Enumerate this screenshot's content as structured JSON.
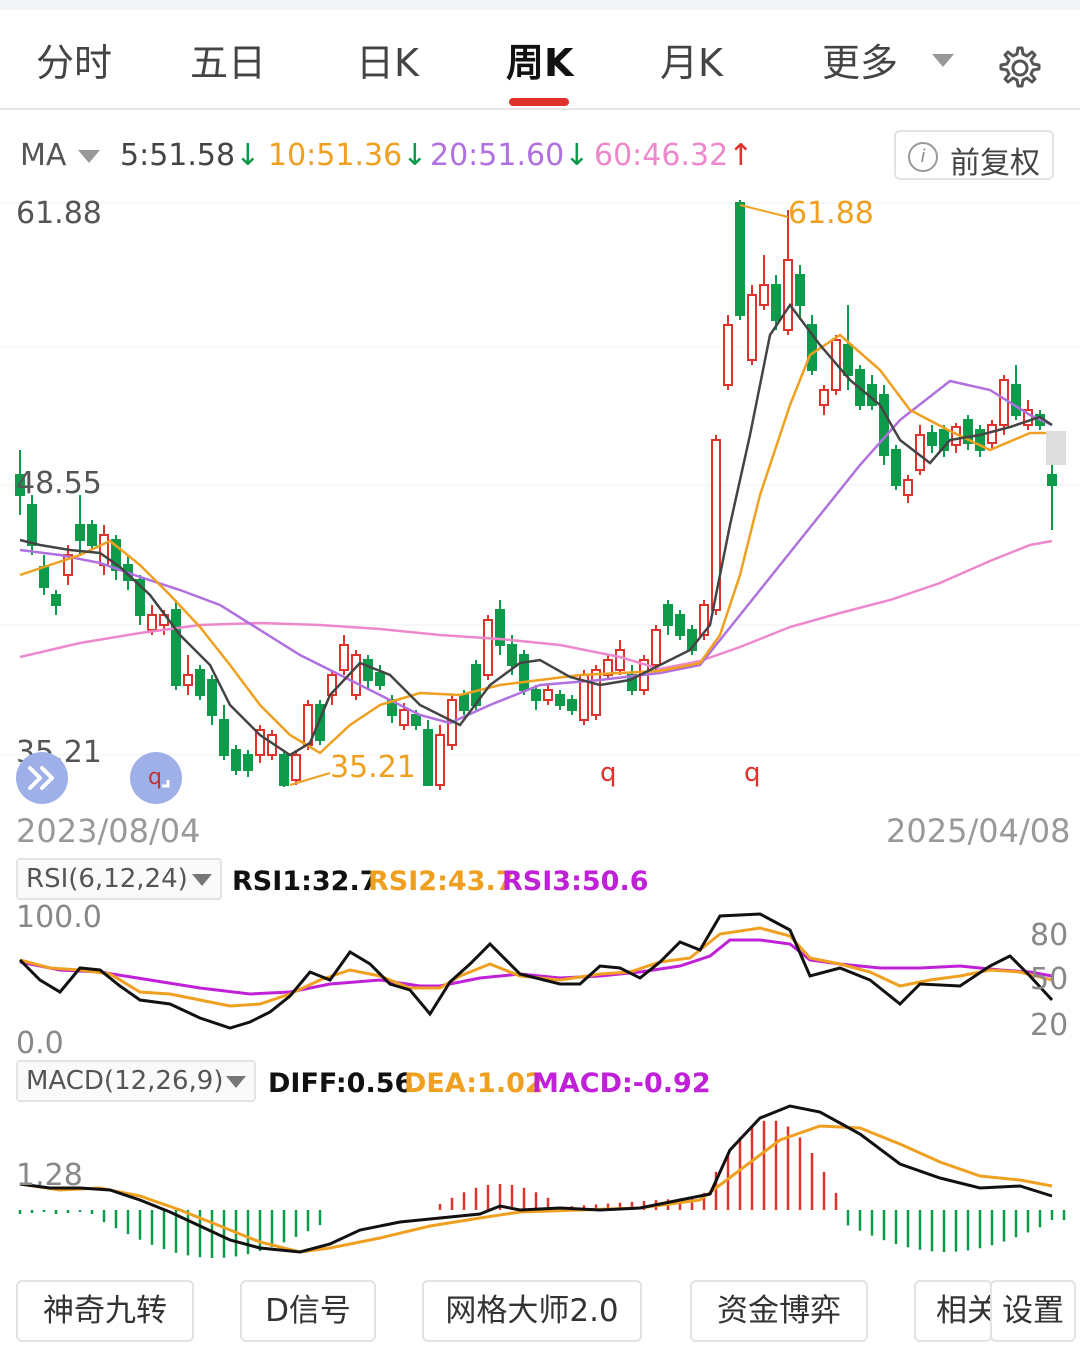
{
  "tabs": [
    {
      "label": "分时"
    },
    {
      "label": "五日"
    },
    {
      "label": "日K"
    },
    {
      "label": "周K"
    },
    {
      "label": "月K"
    },
    {
      "label": "更多"
    }
  ],
  "ma_row": {
    "label": "MA",
    "ma5": "5:51.58",
    "ma10": "10:51.36",
    "ma20": "20:51.60",
    "ma60": "60:46.32",
    "down_arrow": "↓",
    "up_arrow": "↑",
    "adjust_button": "前复权",
    "info_icon": "i"
  },
  "price_axis": {
    "max": "61.88",
    "mid": "48.55",
    "min": "35.21",
    "high_marker": "61.88",
    "low_marker": "35.21",
    "q_marker": "q"
  },
  "dates": {
    "start": "2023/08/04",
    "end": "2025/04/08"
  },
  "rsi": {
    "selector": "RSI(6,12,24)",
    "rsi1": "RSI1:32.7",
    "rsi2": "RSI2:43.7",
    "rsi3": "RSI3:50.6",
    "top": "100.0",
    "bottom": "0.0",
    "l80": "80",
    "l50": "50",
    "l20": "20"
  },
  "macd": {
    "selector": "MACD(12,26,9)",
    "diff": "DIFF:0.56",
    "dea": "DEA:1.02",
    "macd": "MACD:-0.92",
    "axis": "1.28"
  },
  "bottom_buttons": [
    {
      "label": "神奇九转"
    },
    {
      "label": "D信号"
    },
    {
      "label": "网格大师2.0"
    },
    {
      "label": "资金博弈"
    },
    {
      "label": "相关"
    },
    {
      "label": "设置"
    }
  ],
  "colors": {
    "up": "#e0322d",
    "down": "#0e9a4b",
    "ma5": "#444444",
    "ma10": "#f0a020",
    "ma20": "#b070e0",
    "ma60": "#ee88cc",
    "rsi3": "#c020d8"
  }
}
